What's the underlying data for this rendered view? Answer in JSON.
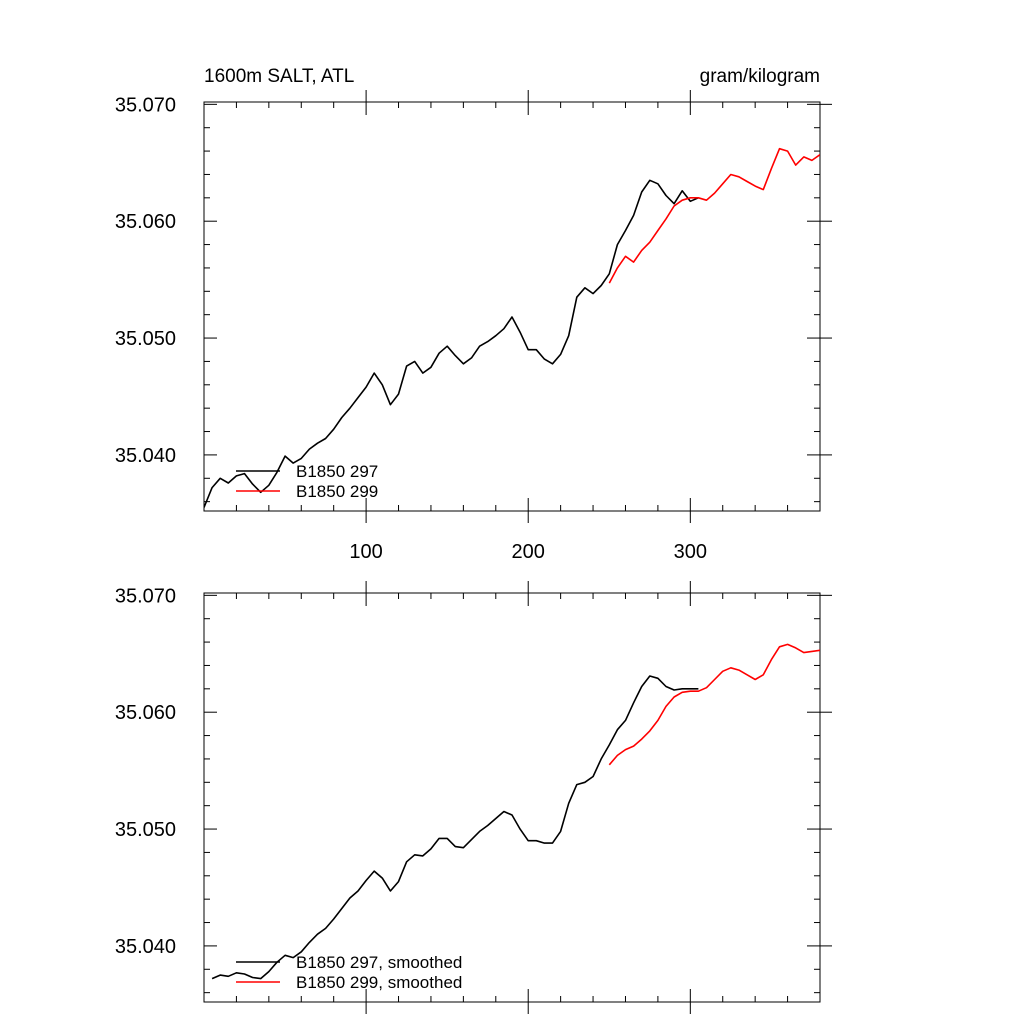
{
  "figure": {
    "title_left": "1600m SALT, ATL",
    "title_right": "gram/kilogram"
  },
  "chart_data": [
    {
      "type": "line",
      "title": "1600m SALT, ATL",
      "units": "gram/kilogram",
      "xlim": [
        0,
        380
      ],
      "ylim": [
        35.0352,
        35.0702
      ],
      "x_ticks": [
        100,
        200,
        300
      ],
      "x_tick_labels": [
        "100",
        "200",
        "300"
      ],
      "y_ticks": [
        35.04,
        35.05,
        35.06,
        35.07
      ],
      "y_tick_labels": [
        "35.040",
        "35.050",
        "35.060",
        "35.070"
      ],
      "legend_position": "bottom-left",
      "series": [
        {
          "name": "B1850 297",
          "color": "#000000",
          "x": [
            0,
            5,
            10,
            15,
            20,
            25,
            30,
            35,
            40,
            45,
            50,
            55,
            60,
            65,
            70,
            75,
            80,
            85,
            90,
            95,
            100,
            105,
            110,
            115,
            120,
            125,
            130,
            135,
            140,
            145,
            150,
            155,
            160,
            165,
            170,
            175,
            180,
            185,
            190,
            195,
            200,
            205,
            210,
            215,
            220,
            225,
            230,
            235,
            240,
            245,
            250,
            255,
            260,
            265,
            270,
            275,
            280,
            285,
            290,
            295,
            300,
            305
          ],
          "y": [
            35.0355,
            35.0372,
            35.038,
            35.0376,
            35.0382,
            35.0384,
            35.0375,
            35.0368,
            35.0374,
            35.0385,
            35.0399,
            35.0393,
            35.0397,
            35.0405,
            35.041,
            35.0414,
            35.0422,
            35.0432,
            35.044,
            35.0449,
            35.0458,
            35.047,
            35.046,
            35.0443,
            35.0452,
            35.0476,
            35.048,
            35.047,
            35.0475,
            35.0487,
            35.0493,
            35.0485,
            35.0478,
            35.0483,
            35.0493,
            35.0497,
            35.0502,
            35.0508,
            35.0518,
            35.0505,
            35.049,
            35.049,
            35.0482,
            35.0478,
            35.0486,
            35.0502,
            35.0535,
            35.0543,
            35.0538,
            35.0545,
            35.0555,
            35.058,
            35.0592,
            35.0605,
            35.0625,
            35.0635,
            35.0632,
            35.0622,
            35.0615,
            35.0626,
            35.0617,
            35.062
          ]
        },
        {
          "name": "B1850 299",
          "color": "#ff0000",
          "x": [
            250,
            255,
            260,
            265,
            270,
            275,
            280,
            285,
            290,
            295,
            300,
            305,
            310,
            315,
            320,
            325,
            330,
            335,
            340,
            345,
            350,
            355,
            360,
            365,
            370,
            375,
            380
          ],
          "y": [
            35.0547,
            35.056,
            35.057,
            35.0565,
            35.0575,
            35.0582,
            35.0592,
            35.0602,
            35.0613,
            35.0618,
            35.062,
            35.062,
            35.0618,
            35.0624,
            35.0632,
            35.064,
            35.0638,
            35.0634,
            35.063,
            35.0627,
            35.0645,
            35.0662,
            35.066,
            35.0648,
            35.0655,
            35.0652,
            35.0657
          ]
        }
      ]
    },
    {
      "type": "line",
      "xlim": [
        0,
        380
      ],
      "ylim": [
        35.0352,
        35.0702
      ],
      "x_ticks": [
        100,
        200,
        300
      ],
      "y_ticks": [
        35.04,
        35.05,
        35.06,
        35.07
      ],
      "y_tick_labels": [
        "35.040",
        "35.050",
        "35.060",
        "35.070"
      ],
      "legend_position": "bottom-left",
      "series": [
        {
          "name": "B1850 297, smoothed",
          "color": "#000000",
          "x": [
            5,
            10,
            15,
            20,
            25,
            30,
            35,
            40,
            45,
            50,
            55,
            60,
            65,
            70,
            75,
            80,
            85,
            90,
            95,
            100,
            105,
            110,
            115,
            120,
            125,
            130,
            135,
            140,
            145,
            150,
            155,
            160,
            165,
            170,
            175,
            180,
            185,
            190,
            195,
            200,
            205,
            210,
            215,
            220,
            225,
            230,
            235,
            240,
            245,
            250,
            255,
            260,
            265,
            270,
            275,
            280,
            285,
            290,
            295,
            300,
            305
          ],
          "y": [
            35.0372,
            35.0375,
            35.0374,
            35.0377,
            35.0376,
            35.0373,
            35.0372,
            35.0378,
            35.0386,
            35.0392,
            35.039,
            35.0395,
            35.0403,
            35.041,
            35.0415,
            35.0423,
            35.0432,
            35.0441,
            35.0447,
            35.0456,
            35.0464,
            35.0458,
            35.0447,
            35.0455,
            35.0472,
            35.0478,
            35.0477,
            35.0483,
            35.0492,
            35.0492,
            35.0485,
            35.0484,
            35.0491,
            35.0498,
            35.0503,
            35.0509,
            35.0515,
            35.0512,
            35.05,
            35.049,
            35.049,
            35.0488,
            35.0488,
            35.0498,
            35.0522,
            35.0538,
            35.054,
            35.0545,
            35.056,
            35.0572,
            35.0585,
            35.0593,
            35.0608,
            35.0622,
            35.0631,
            35.0629,
            35.0622,
            35.0619,
            35.062,
            35.062,
            35.062
          ]
        },
        {
          "name": "B1850 299, smoothed",
          "color": "#ff0000",
          "x": [
            250,
            255,
            260,
            265,
            270,
            275,
            280,
            285,
            290,
            295,
            300,
            305,
            310,
            315,
            320,
            325,
            330,
            335,
            340,
            345,
            350,
            355,
            360,
            365,
            370,
            375,
            380
          ],
          "y": [
            35.0555,
            35.0563,
            35.0568,
            35.0571,
            35.0577,
            35.0584,
            35.0593,
            35.0605,
            35.0613,
            35.0617,
            35.0618,
            35.0618,
            35.0621,
            35.0628,
            35.0635,
            35.0638,
            35.0636,
            35.0632,
            35.0628,
            35.0632,
            35.0645,
            35.0656,
            35.0658,
            35.0655,
            35.0651,
            35.0652,
            35.0653
          ]
        }
      ]
    }
  ]
}
